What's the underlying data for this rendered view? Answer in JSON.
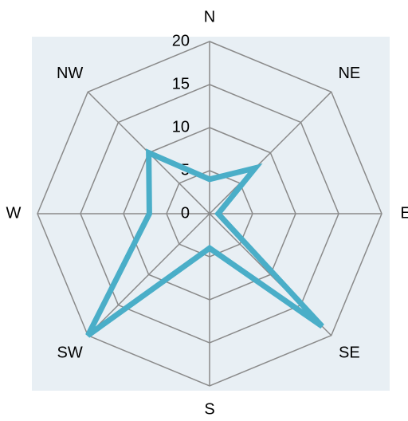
{
  "chart_data": {
    "type": "radar",
    "categories": [
      "N",
      "NE",
      "E",
      "SE",
      "S",
      "SW",
      "W",
      "NW"
    ],
    "series": [
      {
        "color": "#4aaec8",
        "values": [
          4,
          7.5,
          1,
          18.5,
          4,
          20,
          7,
          10
        ]
      }
    ],
    "rlim": [
      0,
      20
    ],
    "rticks": [
      0,
      5,
      10,
      15,
      20
    ],
    "grid": true
  }
}
